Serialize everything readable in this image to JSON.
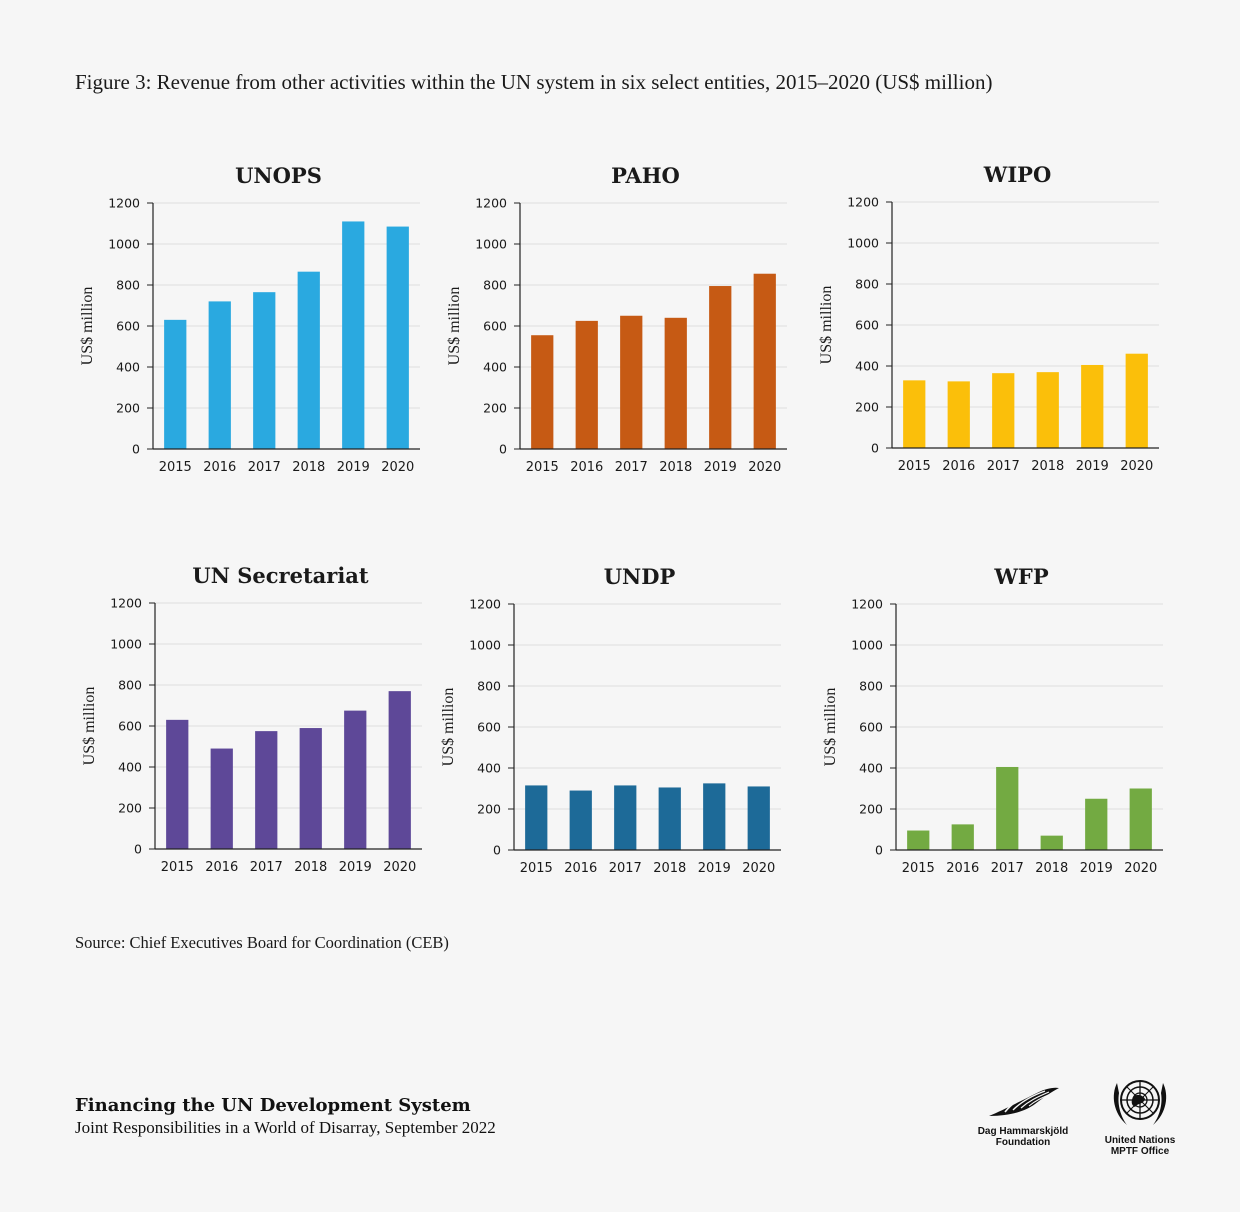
{
  "figure_title": "Figure 3: Revenue from other activities within the UN system in six select entities, 2015–2020 (US$ million)",
  "source": "Source: Chief Executives Board for Coordination (CEB)",
  "footer": {
    "title": "Financing the UN Development System",
    "subtitle": "Joint Responsibilities in a World of Disarray, September 2022"
  },
  "logos": {
    "dag": {
      "line1": "Dag Hammarskjöld",
      "line2": "Foundation"
    },
    "un": {
      "line1": "United Nations",
      "line2": "MPTF Office"
    }
  },
  "chart_data": [
    {
      "type": "bar",
      "title": "UNOPS",
      "ylabel": "US$ million",
      "ylim": [
        0,
        1200
      ],
      "yticks": [
        0,
        200,
        400,
        600,
        800,
        1000,
        1200
      ],
      "categories": [
        "2015",
        "2016",
        "2017",
        "2018",
        "2019",
        "2020"
      ],
      "values": [
        630,
        720,
        765,
        865,
        1110,
        1085
      ],
      "color": "#2aa9e0"
    },
    {
      "type": "bar",
      "title": "PAHO",
      "ylabel": "US$ million",
      "ylim": [
        0,
        1200
      ],
      "yticks": [
        0,
        200,
        400,
        600,
        800,
        1000,
        1200
      ],
      "categories": [
        "2015",
        "2016",
        "2017",
        "2018",
        "2019",
        "2020"
      ],
      "values": [
        555,
        625,
        650,
        640,
        795,
        855
      ],
      "color": "#c65a14"
    },
    {
      "type": "bar",
      "title": "WIPO",
      "ylabel": "US$ million",
      "ylim": [
        0,
        1200
      ],
      "yticks": [
        0,
        200,
        400,
        600,
        800,
        1000,
        1200
      ],
      "categories": [
        "2015",
        "2016",
        "2017",
        "2018",
        "2019",
        "2020"
      ],
      "values": [
        330,
        325,
        365,
        370,
        405,
        460
      ],
      "color": "#fbbf0a"
    },
    {
      "type": "bar",
      "title": "UN Secretariat",
      "ylabel": "US$ million",
      "ylim": [
        0,
        1200
      ],
      "yticks": [
        0,
        200,
        400,
        600,
        800,
        1000,
        1200
      ],
      "categories": [
        "2015",
        "2016",
        "2017",
        "2018",
        "2019",
        "2020"
      ],
      "values": [
        630,
        490,
        575,
        590,
        675,
        770
      ],
      "color": "#5e4898"
    },
    {
      "type": "bar",
      "title": "UNDP",
      "ylabel": "US$ million",
      "ylim": [
        0,
        1200
      ],
      "yticks": [
        0,
        200,
        400,
        600,
        800,
        1000,
        1200
      ],
      "categories": [
        "2015",
        "2016",
        "2017",
        "2018",
        "2019",
        "2020"
      ],
      "values": [
        315,
        290,
        315,
        305,
        325,
        310
      ],
      "color": "#1d6a98"
    },
    {
      "type": "bar",
      "title": "WFP",
      "ylabel": "US$ million",
      "ylim": [
        0,
        1200
      ],
      "yticks": [
        0,
        200,
        400,
        600,
        800,
        1000,
        1200
      ],
      "categories": [
        "2015",
        "2016",
        "2017",
        "2018",
        "2019",
        "2020"
      ],
      "values": [
        95,
        125,
        405,
        70,
        250,
        300
      ],
      "color": "#73aa42"
    }
  ]
}
